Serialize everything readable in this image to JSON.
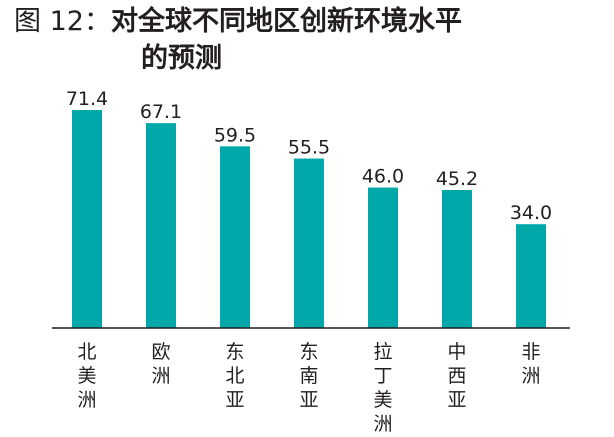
{
  "title": {
    "prefix": "图 12：",
    "main": "对全球不同地区创新环境水平",
    "line2": "的预测"
  },
  "chart_data": {
    "type": "bar",
    "categories": [
      "北美洲",
      "欧洲",
      "东北亚",
      "东南亚",
      "拉丁美洲",
      "中西亚",
      "非洲"
    ],
    "values": [
      71.4,
      67.1,
      59.5,
      55.5,
      46.0,
      45.2,
      34.0
    ],
    "value_labels": [
      "71.4",
      "67.1",
      "59.5",
      "55.5",
      "46.0",
      "45.2",
      "34.0"
    ],
    "ylim": [
      0,
      80
    ],
    "grid": false,
    "legend": "none",
    "bar_color": "#00a8aa",
    "axis_color": "#231f20"
  }
}
